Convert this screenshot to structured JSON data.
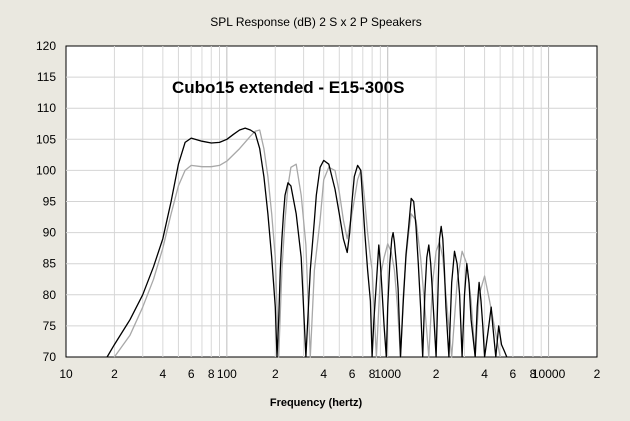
{
  "chart_data": {
    "type": "line",
    "title": "SPL Response (dB)    2 S x 2 P Speakers",
    "annotation": "Cubo15 extended - E15-300S",
    "xlabel": "Frequency (hertz)",
    "ylabel": "",
    "xscale": "log",
    "xlim": [
      10,
      20000
    ],
    "ylim": [
      70,
      120
    ],
    "grid": true,
    "xticklabels": [
      {
        "value": 10,
        "label": "10"
      },
      {
        "value": 20,
        "label": "2"
      },
      {
        "value": 40,
        "label": "4"
      },
      {
        "value": 60,
        "label": "6"
      },
      {
        "value": 80,
        "label": "8"
      },
      {
        "value": 100,
        "label": "100"
      },
      {
        "value": 200,
        "label": "2"
      },
      {
        "value": 400,
        "label": "4"
      },
      {
        "value": 600,
        "label": "6"
      },
      {
        "value": 800,
        "label": "8"
      },
      {
        "value": 1000,
        "label": "1000"
      },
      {
        "value": 2000,
        "label": "2"
      },
      {
        "value": 4000,
        "label": "4"
      },
      {
        "value": 6000,
        "label": "6"
      },
      {
        "value": 8000,
        "label": "8"
      },
      {
        "value": 10000,
        "label": "10000"
      },
      {
        "value": 20000,
        "label": "2"
      }
    ],
    "yticklabels": [
      "70",
      "75",
      "80",
      "85",
      "90",
      "95",
      "100",
      "105",
      "110",
      "115",
      "120"
    ],
    "yticks": [
      70,
      75,
      80,
      85,
      90,
      95,
      100,
      105,
      110,
      115,
      120
    ],
    "series": [
      {
        "color": "#000000",
        "x": [
          18,
          20,
          25,
          30,
          35,
          40,
          45,
          50,
          55,
          60,
          70,
          80,
          90,
          100,
          110,
          120,
          130,
          140,
          150,
          160,
          170,
          180,
          190,
          200,
          205,
          210,
          215,
          220,
          225,
          230,
          240,
          250,
          270,
          290,
          310,
          330,
          350,
          360,
          380,
          400,
          430,
          470,
          500,
          530,
          560,
          580,
          600,
          620,
          650,
          680,
          700,
          720,
          750,
          780,
          800,
          820,
          850,
          880,
          900,
          920,
          950,
          980,
          1000,
          1030,
          1060,
          1080,
          1100,
          1130,
          1160,
          1200,
          1250,
          1300,
          1350,
          1400,
          1450,
          1500,
          1550,
          1600,
          1650,
          1700,
          1750,
          1800,
          1850,
          1900,
          2000,
          2050,
          2100,
          2150,
          2200,
          2250,
          2300,
          2400,
          2500,
          2600,
          2700,
          2800,
          2900,
          3000,
          3100,
          3200,
          3300,
          3500,
          3600,
          3700,
          3800,
          3900,
          4000,
          4200,
          4400,
          4500,
          4700,
          4900,
          5100,
          5300,
          5500
        ],
        "y": [
          70,
          72,
          76,
          80,
          84.5,
          89,
          95,
          101,
          104.5,
          105.2,
          104.7,
          104.4,
          104.5,
          105,
          105.8,
          106.5,
          106.8,
          106.5,
          106,
          103.5,
          99,
          93,
          86,
          78,
          70,
          76,
          84,
          89,
          93,
          96,
          98,
          97.5,
          93,
          86,
          70,
          84,
          92,
          96,
          100.5,
          101.6,
          101,
          97,
          93,
          89,
          86.8,
          90,
          95,
          99,
          100.8,
          100,
          95,
          90,
          84,
          79,
          70,
          76,
          82,
          88,
          85,
          81,
          75,
          70,
          78,
          85,
          89,
          90,
          88.5,
          85,
          81,
          70,
          79,
          86.5,
          91,
          95.5,
          95,
          91,
          85,
          78,
          70,
          80,
          86,
          88,
          85,
          80,
          70,
          80,
          89,
          91,
          89,
          84,
          78,
          70,
          82,
          87,
          85,
          80,
          70,
          80,
          85,
          82,
          76,
          70,
          78,
          82,
          79,
          75,
          70,
          74,
          78,
          75,
          70,
          75,
          72,
          71,
          70
        ]
      },
      {
        "color": "#a8a8a8",
        "x": [
          20,
          25,
          30,
          35,
          40,
          45,
          50,
          55,
          60,
          70,
          80,
          90,
          100,
          120,
          140,
          150,
          160,
          170,
          180,
          190,
          200,
          205,
          210,
          220,
          230,
          240,
          250,
          270,
          290,
          310,
          330,
          350,
          380,
          400,
          430,
          470,
          500,
          530,
          560,
          600,
          650,
          680,
          700,
          720,
          750,
          780,
          800,
          850,
          880,
          900,
          950,
          1000,
          1050,
          1100,
          1150,
          1200,
          1250,
          1300,
          1350,
          1400,
          1500,
          1600,
          1700,
          1800,
          1900,
          2000,
          2100,
          2200,
          2300,
          2500,
          2700,
          2900,
          3100,
          3300,
          3500,
          3700,
          4000,
          4300,
          4600,
          5000
        ],
        "y": [
          70,
          73.5,
          78,
          82.5,
          87.5,
          93,
          97.5,
          100,
          100.8,
          100.6,
          100.6,
          100.8,
          101.5,
          103.5,
          105.5,
          106.3,
          106.5,
          103.5,
          99,
          93,
          86,
          78,
          70,
          84,
          92,
          97.5,
          100.5,
          101,
          96,
          88,
          70,
          84,
          92,
          98.5,
          100.5,
          100,
          96.5,
          92,
          89,
          93,
          98.5,
          100,
          98,
          95,
          90,
          86,
          84,
          70,
          78,
          83,
          86,
          88.2,
          87,
          84,
          78,
          70,
          80,
          86,
          90,
          93,
          92,
          86,
          78,
          70,
          82,
          87,
          88.5,
          86,
          80,
          70,
          82,
          87,
          85,
          79,
          70,
          80,
          83,
          79,
          75,
          70
        ]
      }
    ]
  }
}
